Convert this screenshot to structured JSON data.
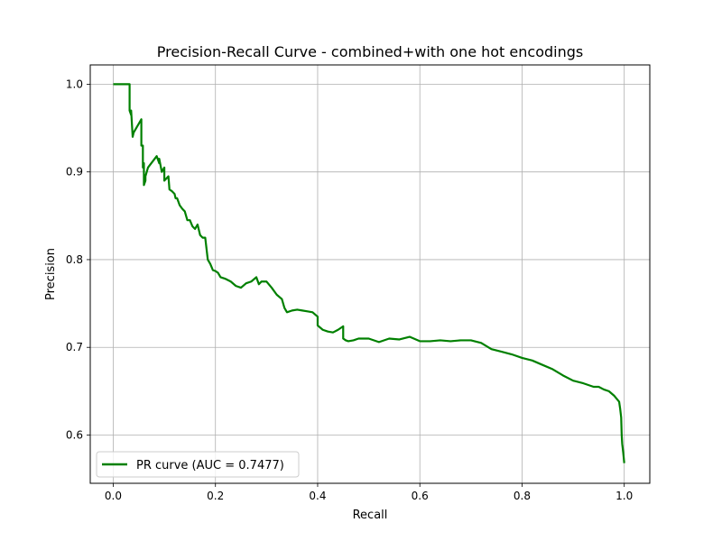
{
  "chart_data": {
    "type": "line",
    "title": "Precision-Recall Curve - combined+with one hot encodings",
    "xlabel": "Recall",
    "ylabel": "Precision",
    "xlim": [
      -0.045,
      1.05
    ],
    "ylim": [
      0.545,
      1.022
    ],
    "xticks": [
      0.0,
      0.2,
      0.4,
      0.6,
      0.8,
      1.0
    ],
    "xtick_labels": [
      "0.0",
      "0.2",
      "0.4",
      "0.6",
      "0.8",
      "1.0"
    ],
    "yticks": [
      0.6,
      0.7,
      0.8,
      0.9,
      1.0
    ],
    "ytick_labels": [
      "0.6",
      "0.7",
      "0.8",
      "0.9",
      "1.0"
    ],
    "grid": true,
    "legend_position": "lower-left",
    "series": [
      {
        "name": "PR curve (AUC = 0.7477)",
        "color": "#008000",
        "x": [
          0.0,
          0.032,
          0.032,
          0.035,
          0.035,
          0.038,
          0.04,
          0.055,
          0.055,
          0.058,
          0.058,
          0.06,
          0.06,
          0.063,
          0.063,
          0.068,
          0.085,
          0.09,
          0.09,
          0.095,
          0.1,
          0.1,
          0.108,
          0.11,
          0.115,
          0.12,
          0.122,
          0.125,
          0.13,
          0.135,
          0.14,
          0.145,
          0.15,
          0.155,
          0.16,
          0.165,
          0.17,
          0.175,
          0.18,
          0.185,
          0.19,
          0.19,
          0.195,
          0.2,
          0.205,
          0.21,
          0.22,
          0.23,
          0.24,
          0.25,
          0.26,
          0.27,
          0.28,
          0.285,
          0.29,
          0.3,
          0.31,
          0.32,
          0.33,
          0.335,
          0.34,
          0.35,
          0.36,
          0.37,
          0.38,
          0.39,
          0.4,
          0.4,
          0.41,
          0.42,
          0.43,
          0.44,
          0.45,
          0.45,
          0.455,
          0.46,
          0.47,
          0.48,
          0.5,
          0.52,
          0.54,
          0.56,
          0.58,
          0.6,
          0.62,
          0.64,
          0.66,
          0.68,
          0.7,
          0.72,
          0.74,
          0.76,
          0.78,
          0.8,
          0.82,
          0.84,
          0.86,
          0.88,
          0.9,
          0.92,
          0.94,
          0.95,
          0.96,
          0.97,
          0.98,
          0.99,
          0.992,
          0.994,
          0.995,
          0.996,
          0.998,
          1.0
        ],
        "y": [
          1.0,
          1.0,
          0.97,
          0.965,
          0.97,
          0.94,
          0.945,
          0.96,
          0.93,
          0.93,
          0.905,
          0.91,
          0.885,
          0.89,
          0.895,
          0.905,
          0.918,
          0.91,
          0.915,
          0.9,
          0.905,
          0.89,
          0.895,
          0.88,
          0.878,
          0.875,
          0.87,
          0.87,
          0.862,
          0.858,
          0.855,
          0.845,
          0.845,
          0.838,
          0.835,
          0.84,
          0.828,
          0.825,
          0.825,
          0.8,
          0.795,
          0.795,
          0.788,
          0.787,
          0.785,
          0.78,
          0.778,
          0.775,
          0.77,
          0.768,
          0.773,
          0.775,
          0.78,
          0.772,
          0.775,
          0.775,
          0.768,
          0.76,
          0.755,
          0.745,
          0.74,
          0.742,
          0.743,
          0.742,
          0.741,
          0.74,
          0.735,
          0.725,
          0.72,
          0.718,
          0.717,
          0.72,
          0.724,
          0.71,
          0.708,
          0.707,
          0.708,
          0.71,
          0.71,
          0.706,
          0.71,
          0.709,
          0.712,
          0.707,
          0.707,
          0.708,
          0.707,
          0.708,
          0.708,
          0.705,
          0.698,
          0.695,
          0.692,
          0.688,
          0.685,
          0.68,
          0.675,
          0.668,
          0.662,
          0.659,
          0.655,
          0.655,
          0.652,
          0.65,
          0.645,
          0.638,
          0.63,
          0.62,
          0.6,
          0.59,
          0.58,
          0.568
        ]
      }
    ]
  }
}
